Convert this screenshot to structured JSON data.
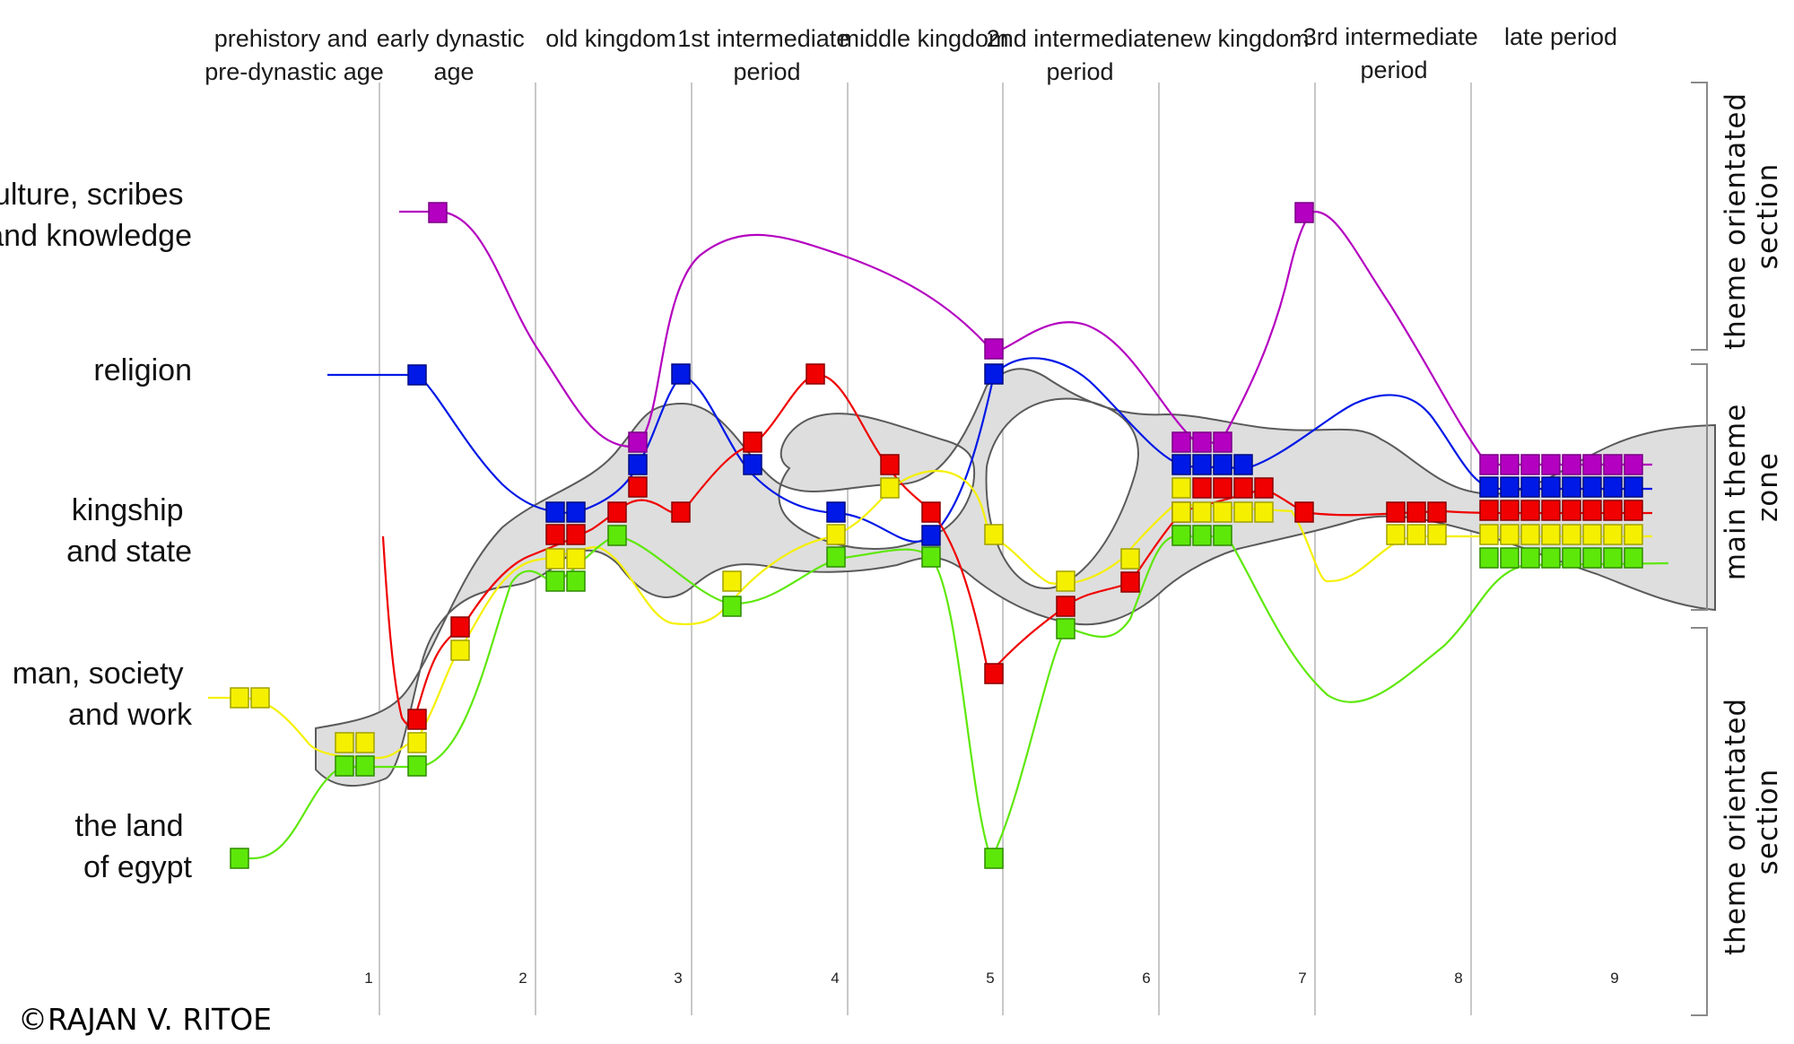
{
  "periods": [
    {
      "id": "prehistory",
      "lines": [
        "prehistory and",
        "pre-dynastic age"
      ]
    },
    {
      "id": "early-dynastic",
      "lines": [
        "early dynastic",
        "age"
      ]
    },
    {
      "id": "old-kingdom",
      "lines": [
        "old kingdom"
      ]
    },
    {
      "id": "first-intermediate",
      "lines": [
        "1st intermediate",
        "period"
      ]
    },
    {
      "id": "middle-kingdom",
      "lines": [
        "middle kingdom"
      ]
    },
    {
      "id": "second-intermediate",
      "lines": [
        "2nd intermediate",
        "period"
      ]
    },
    {
      "id": "new-kingdom",
      "lines": [
        "new kingdom"
      ]
    },
    {
      "id": "third-intermediate",
      "lines": [
        "3rd intermediate",
        "period"
      ]
    },
    {
      "id": "late-period",
      "lines": [
        "late period"
      ]
    }
  ],
  "boundary_numbers": [
    "1",
    "2",
    "3",
    "4",
    "5",
    "6",
    "7",
    "8",
    "9"
  ],
  "themes": [
    {
      "id": "culture",
      "lines": [
        "culture, scribes",
        "and knowledge"
      ],
      "color": "#b400c0"
    },
    {
      "id": "religion",
      "lines": [
        "religion"
      ],
      "color": "#0019e6"
    },
    {
      "id": "kingship",
      "lines": [
        "kingship",
        "and state"
      ],
      "color": "#f00000"
    },
    {
      "id": "man-society",
      "lines": [
        "man, society",
        "and work"
      ],
      "color": "#f5f000"
    },
    {
      "id": "land",
      "lines": [
        "the land",
        "of egypt"
      ],
      "color": "#5ee80a"
    }
  ],
  "sections": [
    {
      "id": "upper-theme-section",
      "lines": [
        "theme orientated",
        "section"
      ]
    },
    {
      "id": "main-theme-zone",
      "lines": [
        "main theme",
        "zone"
      ]
    },
    {
      "id": "lower-theme-section",
      "lines": [
        "theme orientated",
        "section"
      ]
    }
  ],
  "copyright": "©RAJAN V. RITOE",
  "colors": {
    "culture": "#b400c0",
    "religion": "#0019e6",
    "kingship": "#f00000",
    "man_society": "#f5f000",
    "land": "#5ee80a",
    "zone_fill": "#dedede",
    "zone_stroke": "#5a5a5a",
    "grid": "#c8c8c8"
  }
}
